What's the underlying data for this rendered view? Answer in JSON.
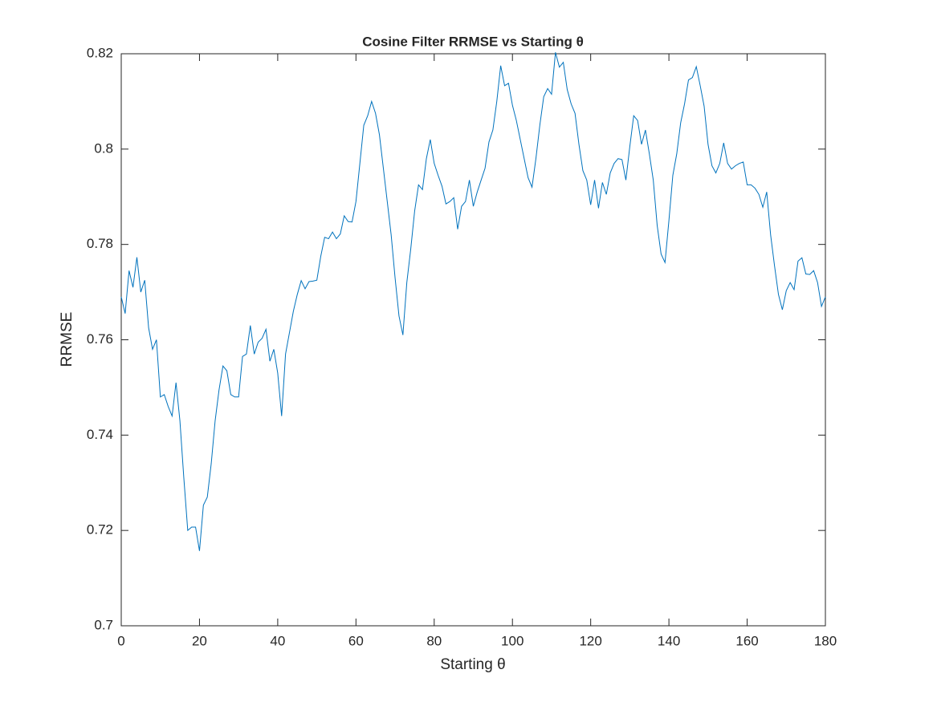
{
  "chart_data": {
    "type": "line",
    "title": "Cosine Filter RRMSE vs Starting θ",
    "xlabel": "Starting θ",
    "ylabel": "RRMSE",
    "x": [
      0,
      1,
      2,
      3,
      4,
      5,
      6,
      7,
      8,
      9,
      10,
      11,
      12,
      13,
      14,
      15,
      16,
      17,
      18,
      19,
      20,
      21,
      22,
      23,
      24,
      25,
      26,
      27,
      28,
      29,
      30,
      31,
      32,
      33,
      34,
      35,
      36,
      37,
      38,
      39,
      40,
      41,
      42,
      43,
      44,
      45,
      46,
      47,
      48,
      49,
      50,
      51,
      52,
      53,
      54,
      55,
      56,
      57,
      58,
      59,
      60,
      61,
      62,
      63,
      64,
      65,
      66,
      67,
      68,
      69,
      70,
      71,
      72,
      73,
      74,
      75,
      76,
      77,
      78,
      79,
      80,
      81,
      82,
      83,
      84,
      85,
      86,
      87,
      88,
      89,
      90,
      91,
      92,
      93,
      94,
      95,
      96,
      97,
      98,
      99,
      100,
      101,
      102,
      103,
      104,
      105,
      106,
      107,
      108,
      109,
      110,
      111,
      112,
      113,
      114,
      115,
      116,
      117,
      118,
      119,
      120,
      121,
      122,
      123,
      124,
      125,
      126,
      127,
      128,
      129,
      130,
      131,
      132,
      133,
      134,
      135,
      136,
      137,
      138,
      139,
      140,
      141,
      142,
      143,
      144,
      145,
      146,
      147,
      148,
      149,
      150,
      151,
      152,
      153,
      154,
      155,
      156,
      157,
      158,
      159,
      160,
      161,
      162,
      163,
      164,
      165,
      166,
      167,
      168,
      169,
      170,
      171,
      172,
      173,
      174,
      175,
      176,
      177,
      178,
      179,
      180
    ],
    "series": [
      {
        "name": "RRMSE",
        "color": "#0072bd",
        "values": [
          0.769,
          0.7655,
          0.7745,
          0.771,
          0.7773,
          0.77,
          0.7725,
          0.7625,
          0.758,
          0.76,
          0.748,
          0.7485,
          0.746,
          0.744,
          0.751,
          0.743,
          0.731,
          0.72,
          0.7207,
          0.7207,
          0.7157,
          0.7253,
          0.727,
          0.734,
          0.743,
          0.7495,
          0.7545,
          0.7535,
          0.7485,
          0.748,
          0.748,
          0.7565,
          0.757,
          0.763,
          0.757,
          0.7595,
          0.7603,
          0.7622,
          0.7555,
          0.758,
          0.753,
          0.744,
          0.757,
          0.7615,
          0.766,
          0.7695,
          0.7724,
          0.7707,
          0.7722,
          0.7723,
          0.7725,
          0.7775,
          0.7815,
          0.7812,
          0.7826,
          0.7812,
          0.7822,
          0.786,
          0.7848,
          0.7847,
          0.789,
          0.797,
          0.805,
          0.807,
          0.81,
          0.8075,
          0.803,
          0.796,
          0.789,
          0.782,
          0.773,
          0.765,
          0.761,
          0.772,
          0.779,
          0.787,
          0.7925,
          0.7915,
          0.798,
          0.802,
          0.797,
          0.7945,
          0.7922,
          0.7885,
          0.789,
          0.7898,
          0.7832,
          0.788,
          0.789,
          0.7935,
          0.788,
          0.791,
          0.7935,
          0.796,
          0.8015,
          0.804,
          0.81,
          0.8175,
          0.8133,
          0.8138,
          0.8092,
          0.806,
          0.802,
          0.798,
          0.794,
          0.792,
          0.798,
          0.805,
          0.811,
          0.8127,
          0.8115,
          0.8203,
          0.8172,
          0.8182,
          0.8125,
          0.8095,
          0.8075,
          0.801,
          0.7955,
          0.7935,
          0.7883,
          0.7935,
          0.7876,
          0.793,
          0.7905,
          0.795,
          0.797,
          0.798,
          0.7978,
          0.7935,
          0.8005,
          0.807,
          0.806,
          0.801,
          0.804,
          0.799,
          0.7935,
          0.784,
          0.778,
          0.7762,
          0.785,
          0.7945,
          0.799,
          0.8055,
          0.8095,
          0.8145,
          0.815,
          0.8173,
          0.8133,
          0.809,
          0.801,
          0.7965,
          0.795,
          0.797,
          0.8013,
          0.797,
          0.7958,
          0.7965,
          0.797,
          0.7973,
          0.7925,
          0.7925,
          0.7918,
          0.7905,
          0.7878,
          0.791,
          0.782,
          0.7755,
          0.7695,
          0.7663,
          0.7703,
          0.772,
          0.7705,
          0.7765,
          0.7772,
          0.7738,
          0.7737,
          0.7745,
          0.772,
          0.767,
          0.769
        ]
      }
    ],
    "xlim": [
      0,
      180
    ],
    "xticks": [
      0,
      20,
      40,
      60,
      80,
      100,
      120,
      140,
      160,
      180
    ],
    "ylim": [
      0.7,
      0.82
    ],
    "yticks": [
      0.7,
      0.72,
      0.74,
      0.76,
      0.78,
      0.8,
      0.82
    ]
  }
}
